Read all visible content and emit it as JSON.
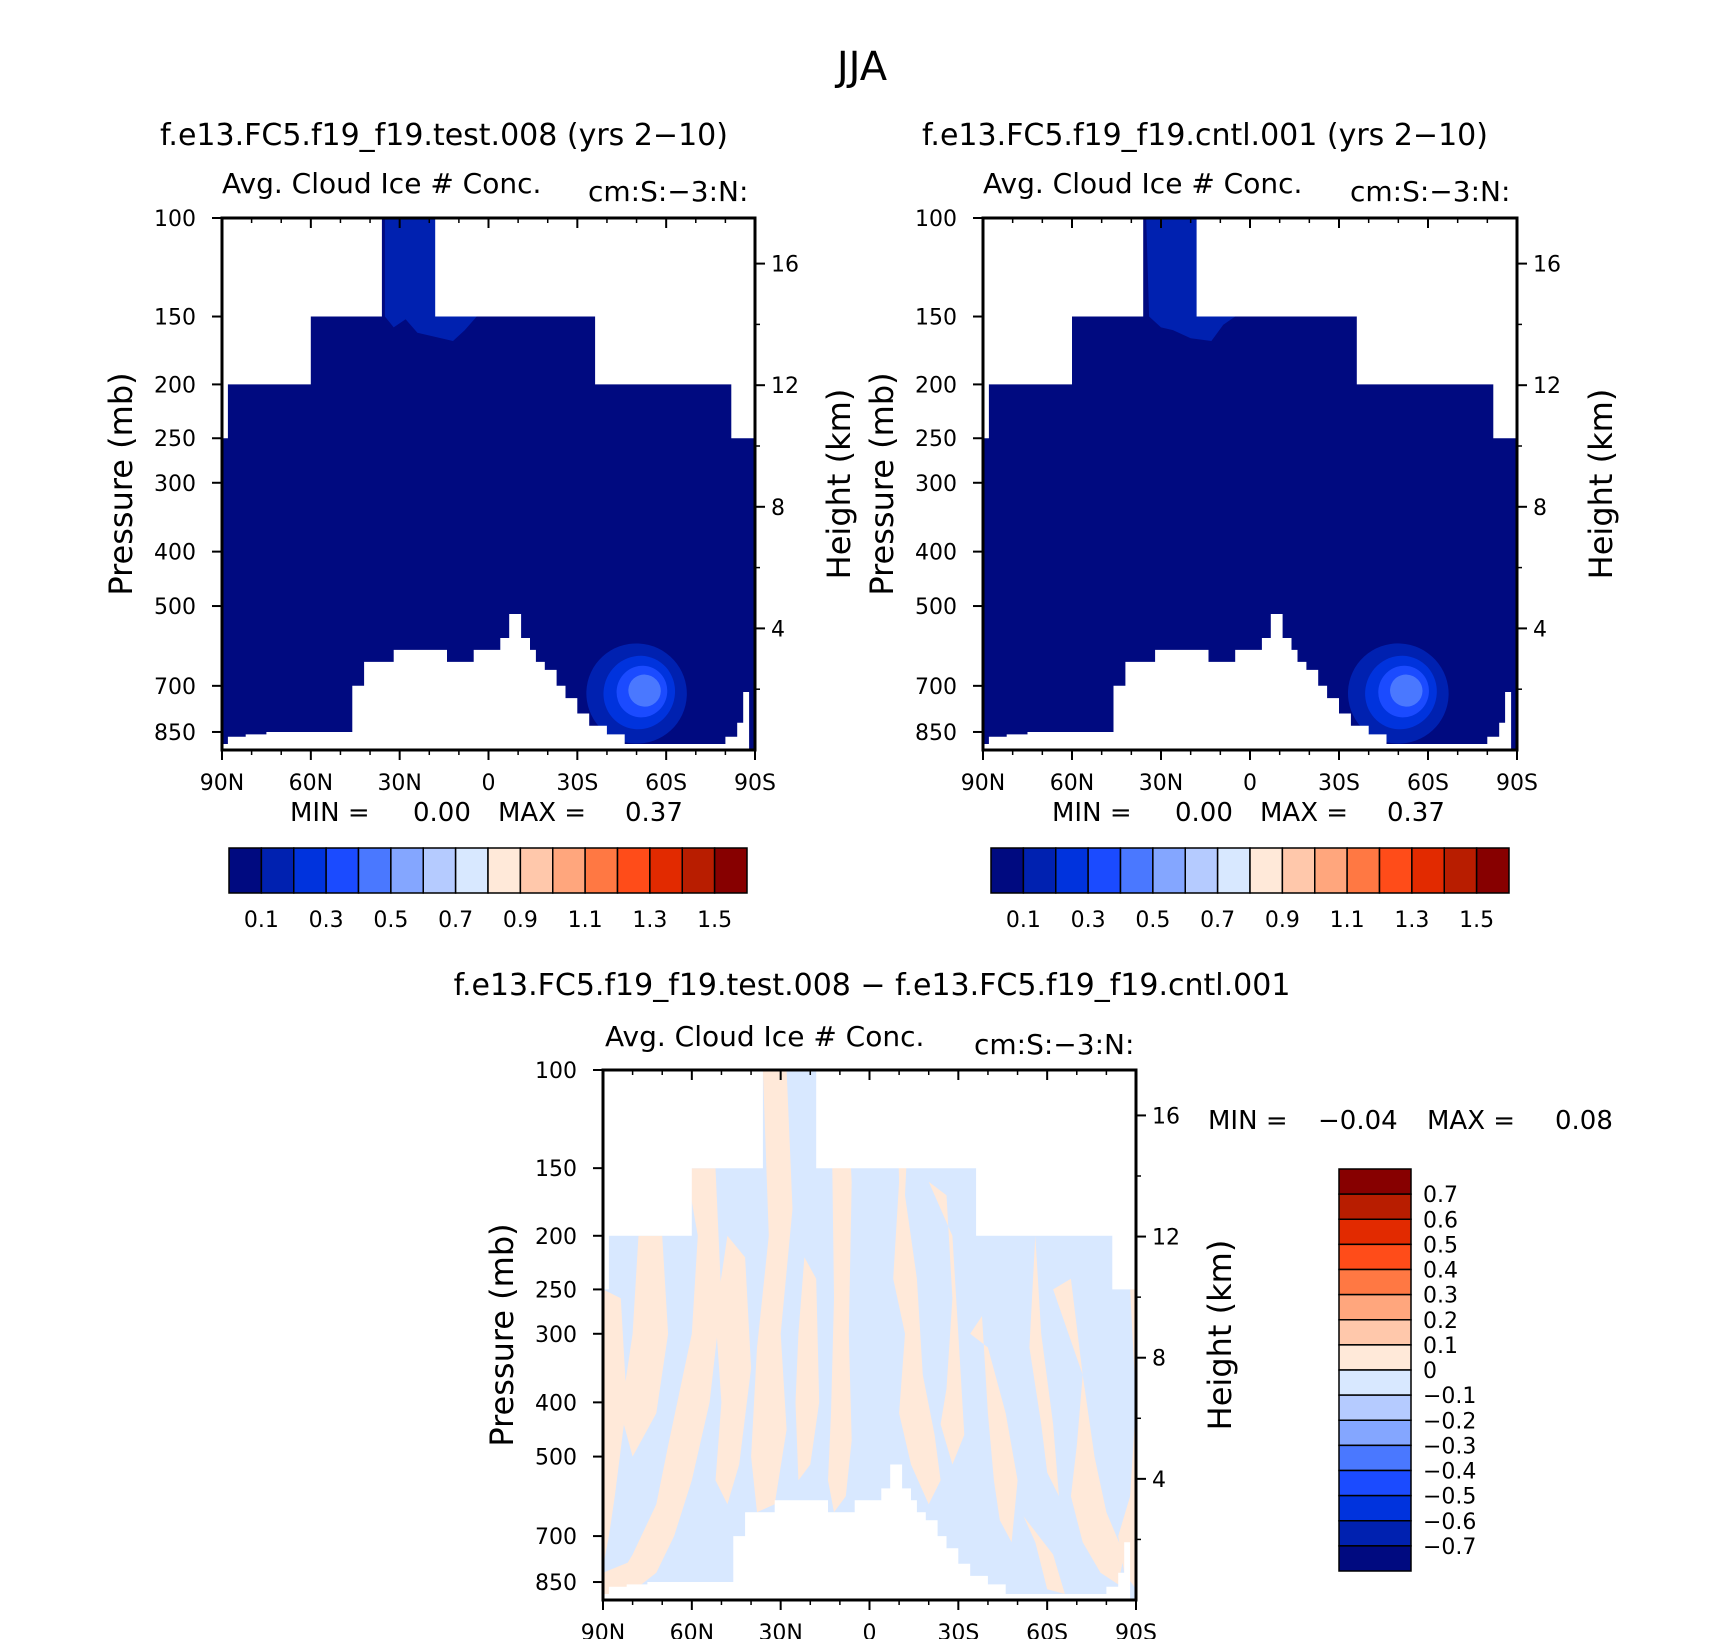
{
  "figure": {
    "title": "JJA"
  },
  "chart_data": [
    {
      "id": "test",
      "type": "heatmap",
      "title": "f.e13.FC5.f19_f19.test.008 (yrs 2−10)",
      "subtitle_left": "Avg. Cloud Ice # Conc.",
      "subtitle_right": "cm:S:−3:N:",
      "xlabel": "",
      "ylabel": "Pressure (mb)",
      "ylabel_right": "Height (km)",
      "x_ticks": [
        "90N",
        "60N",
        "30N",
        "0",
        "30S",
        "60S",
        "90S"
      ],
      "y_ticks": [
        "100",
        "150",
        "200",
        "250",
        "300",
        "400",
        "500",
        "700",
        "850"
      ],
      "y_ticks_right": [
        "16",
        "12",
        "8",
        "4"
      ],
      "stats": {
        "min_label": "MIN =",
        "min": "0.00",
        "max_label": "MAX =",
        "max": "0.37"
      },
      "colorbar_labels": [
        "0.1",
        "0.3",
        "0.5",
        "0.7",
        "0.9",
        "1.1",
        "1.3",
        "1.5"
      ],
      "features": [
        {
          "label": "ice-conc-max",
          "lat": -50,
          "p": 720,
          "value": 0.37
        }
      ]
    },
    {
      "id": "cntl",
      "type": "heatmap",
      "title": "f.e13.FC5.f19_f19.cntl.001 (yrs 2−10)",
      "subtitle_left": "Avg. Cloud Ice # Conc.",
      "subtitle_right": "cm:S:−3:N:",
      "xlabel": "",
      "ylabel": "Pressure (mb)",
      "ylabel_right": "Height (km)",
      "x_ticks": [
        "90N",
        "60N",
        "30N",
        "0",
        "30S",
        "60S",
        "90S"
      ],
      "y_ticks": [
        "100",
        "150",
        "200",
        "250",
        "300",
        "400",
        "500",
        "700",
        "850"
      ],
      "y_ticks_right": [
        "16",
        "12",
        "8",
        "4"
      ],
      "stats": {
        "min_label": "MIN =",
        "min": "0.00",
        "max_label": "MAX =",
        "max": "0.37"
      },
      "colorbar_labels": [
        "0.1",
        "0.3",
        "0.5",
        "0.7",
        "0.9",
        "1.1",
        "1.3",
        "1.5"
      ],
      "features": [
        {
          "label": "ice-conc-max",
          "lat": -50,
          "p": 720,
          "value": 0.37
        }
      ]
    },
    {
      "id": "diff",
      "type": "heatmap",
      "title": "f.e13.FC5.f19_f19.test.008 − f.e13.FC5.f19_f19.cntl.001",
      "subtitle_left": "Avg. Cloud Ice # Conc.",
      "subtitle_right": "cm:S:−3:N:",
      "xlabel": "",
      "ylabel": "Pressure (mb)",
      "ylabel_right": "Height (km)",
      "x_ticks": [
        "90N",
        "60N",
        "30N",
        "0",
        "30S",
        "60S",
        "90S"
      ],
      "y_ticks": [
        "100",
        "150",
        "200",
        "250",
        "300",
        "400",
        "500",
        "700",
        "850"
      ],
      "y_ticks_right": [
        "16",
        "12",
        "8",
        "4"
      ],
      "stats": {
        "min_label": "MIN =",
        "min": "−0.04",
        "max_label": "MAX =",
        "max": "0.08"
      },
      "colorbar_labels": [
        "0.7",
        "0.6",
        "0.5",
        "0.4",
        "0.3",
        "0.2",
        "0.1",
        "0",
        "−0.1",
        "−0.2",
        "−0.3",
        "−0.4",
        "−0.5",
        "−0.6",
        "−0.7"
      ]
    }
  ],
  "palettes": {
    "absolute": [
      "#000a80",
      "#0021b0",
      "#0033dd",
      "#1b4bff",
      "#4a78ff",
      "#84a6ff",
      "#b5cbff",
      "#d8e8ff",
      "#ffe9d9",
      "#ffc8ab",
      "#ffa67d",
      "#ff7843",
      "#ff4c19",
      "#e22a00",
      "#b81d00",
      "#870000"
    ],
    "difference": [
      "#870000",
      "#b81d00",
      "#e22a00",
      "#ff4c19",
      "#ff7843",
      "#ffa67d",
      "#ffc8ab",
      "#ffe9d9",
      "#d8e8ff",
      "#b5cbff",
      "#84a6ff",
      "#4a78ff",
      "#1b4bff",
      "#0033dd",
      "#0021b0",
      "#000a80"
    ],
    "mask": "#ffffff"
  }
}
